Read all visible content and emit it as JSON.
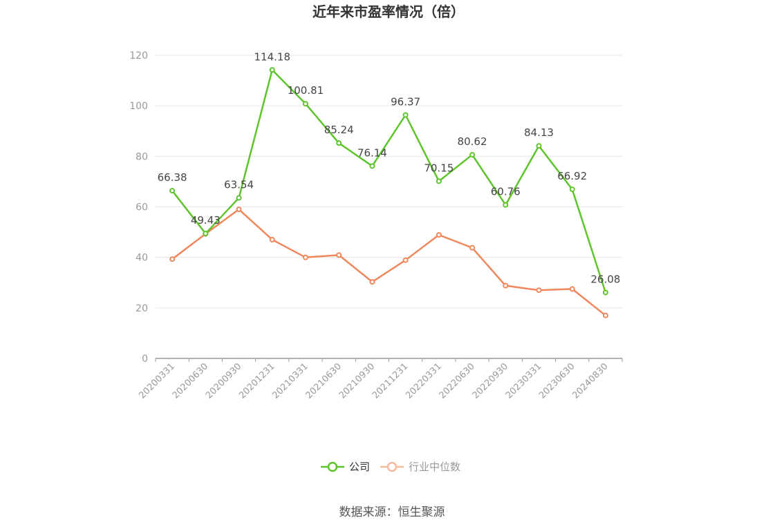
{
  "chart_data": {
    "type": "line",
    "title": "近年来市盈率情况（倍）",
    "x": [
      "20200331",
      "20200630",
      "20200930",
      "20201231",
      "20210331",
      "20210630",
      "20210930",
      "20211231",
      "20220331",
      "20220630",
      "20220930",
      "20230331",
      "20230630",
      "20240830"
    ],
    "ylim": [
      0,
      120
    ],
    "yticks": [
      0,
      20,
      40,
      60,
      80,
      100,
      120
    ],
    "grid": true,
    "legend_position": "bottom",
    "series": [
      {
        "name": "公司",
        "color": "#5ec42b",
        "values": [
          66.38,
          49.43,
          63.54,
          114.18,
          100.81,
          85.24,
          76.14,
          96.37,
          70.15,
          80.62,
          60.76,
          84.13,
          66.92,
          26.08
        ],
        "labels": [
          "66.38",
          "49.43",
          "63.54",
          "114.18",
          "100.81",
          "85.24",
          "76.14",
          "96.37",
          "70.15",
          "80.62",
          "60.76",
          "84.13",
          "66.92",
          "26.08"
        ]
      },
      {
        "name": "行业中位数",
        "color": "#f0875a",
        "legend_color": "#f8b99d",
        "values": [
          39.3,
          49.3,
          59.0,
          47.0,
          40.0,
          40.9,
          30.3,
          38.9,
          48.9,
          43.8,
          28.8,
          27.0,
          27.5,
          17.0
        ]
      }
    ],
    "source": "数据来源：恒生聚源"
  }
}
